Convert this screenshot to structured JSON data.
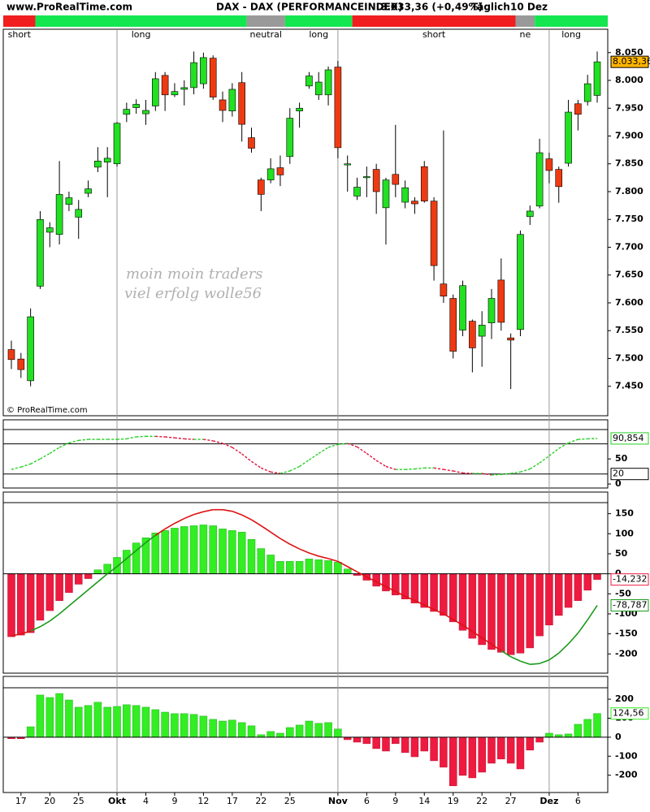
{
  "header": {
    "site": "www.ProRealTime.com",
    "instrument": "DAX - DAX (PERFORMANCEINDEX)",
    "quote": "8.033,36 (+0,49%)",
    "interval": "Täglich",
    "date": "10 Dez",
    "copyright": "© ProRealTime.com",
    "watermark": [
      "moin moin traders",
      "viel erfolg  wolle56"
    ]
  },
  "chart_data": [
    {
      "type": "candlestick",
      "categories": [
        null,
        "17",
        null,
        null,
        "20",
        null,
        null,
        "25",
        null,
        null,
        null,
        "Okt",
        null,
        null,
        "4",
        null,
        null,
        "9",
        null,
        null,
        "12",
        null,
        null,
        "17",
        null,
        null,
        "22",
        null,
        null,
        "25",
        null,
        null,
        null,
        null,
        "Nov",
        null,
        null,
        "6",
        null,
        null,
        "9",
        null,
        null,
        "14",
        null,
        null,
        "19",
        null,
        null,
        "22",
        null,
        null,
        "27",
        null,
        null,
        null,
        "Dez",
        null,
        null,
        "6",
        null,
        null
      ],
      "open": [
        7516,
        7499,
        7460,
        7630,
        7727,
        7723,
        7777,
        7754,
        7797,
        7844,
        7853,
        7850,
        7939,
        7951,
        7940,
        7954,
        8009,
        7974,
        7984,
        7987,
        7994,
        8040,
        7965,
        7945,
        7996,
        7897,
        7821,
        7821,
        7843,
        7863,
        7945,
        7990,
        7974,
        7974,
        8024,
        7848,
        7792,
        7825,
        7840,
        7771,
        7831,
        7781,
        7783,
        7845,
        7783,
        7634,
        7608,
        7551,
        7567,
        7540,
        7564,
        7641,
        7537,
        7552,
        7755,
        7774,
        7859,
        7840,
        7851,
        7958,
        7962,
        7973
      ],
      "high": [
        7532,
        7510,
        7590,
        7765,
        7745,
        7855,
        7800,
        7785,
        7820,
        7880,
        7880,
        7925,
        7960,
        7966,
        7965,
        8015,
        8015,
        7995,
        8000,
        8052,
        8050,
        8045,
        7980,
        7995,
        8015,
        7915,
        7825,
        7860,
        7865,
        7950,
        7960,
        8015,
        8015,
        8025,
        8035,
        7865,
        7825,
        7845,
        7850,
        7825,
        7920,
        7820,
        7790,
        7855,
        7790,
        7910,
        7615,
        7640,
        7570,
        7585,
        7625,
        7680,
        7545,
        7730,
        7775,
        7895,
        7870,
        7845,
        7965,
        7965,
        8010,
        8052
      ],
      "low": [
        7481,
        7465,
        7450,
        7625,
        7700,
        7705,
        7765,
        7715,
        7790,
        7835,
        7790,
        7845,
        7925,
        7940,
        7920,
        7945,
        7945,
        7970,
        7955,
        7975,
        7985,
        7965,
        7925,
        7935,
        7890,
        7870,
        7765,
        7815,
        7810,
        7850,
        7915,
        7985,
        7965,
        7955,
        7860,
        7800,
        7785,
        7790,
        7760,
        7705,
        7790,
        7770,
        7760,
        7780,
        7640,
        7600,
        7500,
        7540,
        7475,
        7485,
        7535,
        7550,
        7445,
        7540,
        7740,
        7770,
        7815,
        7780,
        7845,
        7910,
        7955,
        7960
      ],
      "close": [
        7498,
        7480,
        7575,
        7750,
        7735,
        7795,
        7789,
        7768,
        7805,
        7855,
        7860,
        7923,
        7948,
        7957,
        7946,
        8003,
        7974,
        7980,
        7987,
        8032,
        8041,
        7970,
        7946,
        7984,
        7921,
        7878,
        7795,
        7841,
        7830,
        7932,
        7950,
        8008,
        7997,
        8019,
        7879,
        7850,
        7808,
        7827,
        7800,
        7821,
        7813,
        7807,
        7778,
        7783,
        7667,
        7612,
        7513,
        7631,
        7519,
        7560,
        7608,
        7565,
        7533,
        7723,
        7765,
        7870,
        7838,
        7809,
        7943,
        7939,
        7994,
        8033.36
      ],
      "last_label": "8.033,36",
      "ylim": [
        7397,
        8092
      ],
      "yticks": [
        {
          "value": 8050,
          "label": "8.050"
        },
        {
          "value": 8000,
          "label": "8.000"
        },
        {
          "value": 7950,
          "label": "7.950"
        },
        {
          "value": 7900,
          "label": "7.900"
        },
        {
          "value": 7850,
          "label": "7.850"
        },
        {
          "value": 7800,
          "label": "7.800"
        },
        {
          "value": 7750,
          "label": "7.750"
        },
        {
          "value": 7700,
          "label": "7.700"
        },
        {
          "value": 7650,
          "label": "7.650"
        },
        {
          "value": 7600,
          "label": "7.600"
        },
        {
          "value": 7550,
          "label": "7.550"
        },
        {
          "value": 7500,
          "label": "7.500"
        },
        {
          "value": 7450,
          "label": "7.450"
        }
      ],
      "up_color": "#22e022",
      "down_color": "#ee3a12",
      "regimes": [
        {
          "label": "short",
          "color": "#f01e1e",
          "start": 0,
          "end": 3
        },
        {
          "label": "long",
          "color": "#14e650",
          "start": 3,
          "end": 25
        },
        {
          "label": "neutral",
          "color": "#999999",
          "start": 25,
          "end": 29
        },
        {
          "label": "long",
          "color": "#14e650",
          "start": 29,
          "end": 36
        },
        {
          "label": "short",
          "color": "#f01e1e",
          "start": 36,
          "end": 53
        },
        {
          "label": "ne",
          "color": "#999999",
          "start": 53,
          "end": 55
        },
        {
          "label": "long",
          "color": "#14e650",
          "start": 55,
          "end": 62
        }
      ]
    },
    {
      "type": "line",
      "values": [
        29,
        34,
        40,
        50,
        61,
        73,
        82,
        87,
        89,
        89,
        89,
        89,
        90,
        94,
        95,
        95,
        94,
        92,
        90,
        89,
        89,
        86,
        81,
        73,
        60,
        45,
        32,
        24,
        21,
        26,
        35,
        48,
        61,
        73,
        79,
        81,
        74,
        61,
        47,
        35,
        29,
        29,
        30,
        32,
        32,
        29,
        26,
        22,
        21,
        21,
        18,
        19,
        21,
        24,
        30,
        42,
        56,
        71,
        82,
        89,
        90,
        90.854
      ],
      "last_label": "90,854",
      "ylim": [
        -8,
        128
      ],
      "yticks": [
        0,
        50
      ],
      "levels": [
        20,
        80
      ],
      "up_color": "#22d022",
      "down_color": "#e0103a"
    },
    {
      "type": "macd",
      "series": [
        {
          "kind": "bar",
          "values": [
            -157,
            -153,
            -147,
            -116,
            -92,
            -67,
            -47,
            -26,
            -12,
            10,
            24,
            41,
            59,
            77,
            90,
            102,
            108,
            114,
            118,
            120,
            122,
            120,
            112,
            108,
            104,
            86,
            63,
            47,
            31,
            31,
            31,
            37,
            35,
            33,
            29,
            12,
            -4,
            -16,
            -31,
            -43,
            -53,
            -63,
            -73,
            -84,
            -94,
            -104,
            -120,
            -141,
            -161,
            -177,
            -189,
            -196,
            -202,
            -198,
            -185,
            -155,
            -128,
            -104,
            -84,
            -67,
            -41,
            -14.232
          ],
          "last_label": "-14,232",
          "up_color": "#33ee22",
          "down_color": "#ee1a40"
        },
        {
          "kind": "line",
          "values": [
            -155,
            -150,
            -143,
            -132,
            -118,
            -100,
            -80,
            -60,
            -40,
            -20,
            0,
            18,
            38,
            58,
            78,
            96,
            112,
            126,
            138,
            148,
            155,
            160,
            160,
            156,
            147,
            135,
            120,
            104,
            88,
            74,
            62,
            52,
            44,
            38,
            31,
            18,
            5,
            -8,
            -20,
            -32,
            -44,
            -56,
            -67,
            -78,
            -89,
            -100,
            -114,
            -128,
            -144,
            -160,
            -176,
            -192,
            -207,
            -218,
            -226,
            -224,
            -215,
            -198,
            -175,
            -148,
            -115,
            -78.787
          ],
          "last_label": "-78,787",
          "up_color": "#1a9a1a",
          "down_color": "#dd1111"
        }
      ],
      "ylim": [
        -248,
        204
      ],
      "yticks": [
        150,
        100,
        50,
        0,
        -50,
        -100,
        -150,
        -200
      ]
    },
    {
      "type": "bar",
      "values": [
        -8,
        -8,
        55,
        222,
        209,
        230,
        196,
        158,
        167,
        184,
        158,
        162,
        171,
        167,
        158,
        145,
        132,
        124,
        124,
        120,
        111,
        94,
        85,
        90,
        77,
        60,
        13,
        30,
        21,
        51,
        64,
        85,
        73,
        77,
        43,
        -13,
        -26,
        -34,
        -60,
        -73,
        -34,
        -81,
        -103,
        -73,
        -124,
        -158,
        -256,
        -201,
        -214,
        -184,
        -137,
        -115,
        -137,
        -167,
        -68,
        -26,
        21,
        13,
        17,
        68,
        94,
        124.56
      ],
      "last_label": "124,56",
      "ylim": [
        -291,
        320
      ],
      "yticks": [
        200,
        100,
        0,
        -100,
        -200
      ],
      "up_color": "#33ee22",
      "down_color": "#ee1a40"
    }
  ]
}
